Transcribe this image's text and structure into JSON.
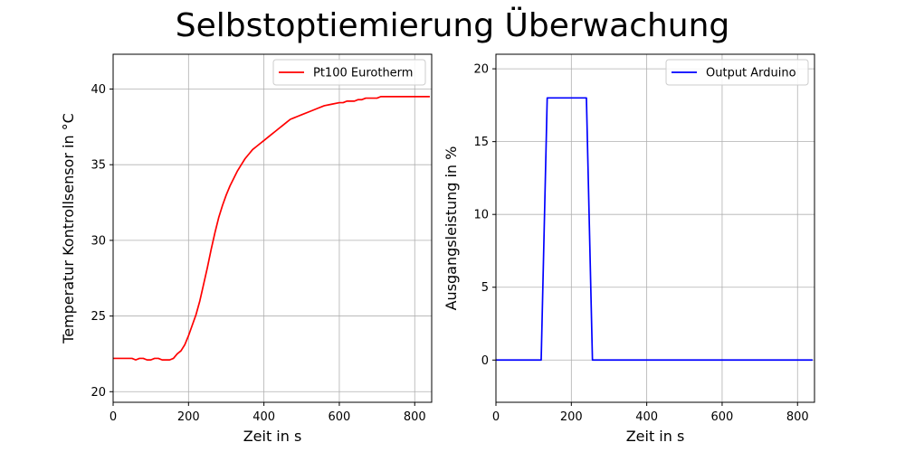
{
  "figure": {
    "title": "Selbstoptiemierung Überwachung"
  },
  "chart_data": [
    {
      "type": "line",
      "title": "",
      "xlabel": "Zeit in s",
      "ylabel": "Temperatur Kontrollsensor in °C",
      "xlim": [
        0,
        845
      ],
      "ylim": [
        19.3,
        42.3
      ],
      "xticks": [
        0,
        200,
        400,
        600,
        800
      ],
      "yticks": [
        20,
        25,
        30,
        35,
        40
      ],
      "grid": true,
      "legend_position": "upper-right",
      "series": [
        {
          "name": "Pt100 Eurotherm",
          "color": "#ff0000",
          "x": [
            0,
            10,
            20,
            30,
            40,
            50,
            60,
            70,
            80,
            90,
            100,
            110,
            120,
            130,
            140,
            150,
            160,
            170,
            180,
            190,
            200,
            210,
            220,
            230,
            240,
            250,
            260,
            270,
            280,
            290,
            300,
            310,
            320,
            330,
            340,
            350,
            360,
            370,
            380,
            390,
            400,
            410,
            420,
            430,
            440,
            450,
            460,
            470,
            480,
            490,
            500,
            520,
            540,
            560,
            580,
            600,
            610,
            620,
            640,
            650,
            660,
            670,
            680,
            690,
            700,
            710,
            720,
            740,
            760,
            780,
            800,
            820,
            840
          ],
          "y": [
            22.2,
            22.2,
            22.2,
            22.2,
            22.2,
            22.2,
            22.1,
            22.2,
            22.2,
            22.1,
            22.1,
            22.2,
            22.2,
            22.1,
            22.1,
            22.1,
            22.2,
            22.5,
            22.7,
            23.1,
            23.7,
            24.4,
            25.1,
            26.0,
            27.1,
            28.2,
            29.4,
            30.5,
            31.5,
            32.3,
            33.0,
            33.6,
            34.1,
            34.6,
            35.0,
            35.4,
            35.7,
            36.0,
            36.2,
            36.4,
            36.6,
            36.8,
            37.0,
            37.2,
            37.4,
            37.6,
            37.8,
            38.0,
            38.1,
            38.2,
            38.3,
            38.5,
            38.7,
            38.9,
            39.0,
            39.1,
            39.1,
            39.2,
            39.2,
            39.3,
            39.3,
            39.4,
            39.4,
            39.4,
            39.4,
            39.5,
            39.5,
            39.5,
            39.5,
            39.5,
            39.5,
            39.5,
            39.5
          ]
        }
      ]
    },
    {
      "type": "line",
      "title": "",
      "xlabel": "Zeit in s",
      "ylabel": "Ausgangsleistung in %",
      "xlim": [
        0,
        845
      ],
      "ylim": [
        -2.9,
        21.0
      ],
      "xticks": [
        0,
        200,
        400,
        600,
        800
      ],
      "yticks": [
        0,
        5,
        10,
        15,
        20
      ],
      "grid": true,
      "legend_position": "upper-right",
      "series": [
        {
          "name": "Output Arduino",
          "color": "#0000ff",
          "x": [
            0,
            120,
            136,
            240,
            256,
            840
          ],
          "y": [
            0,
            0,
            18,
            18,
            0,
            0
          ]
        }
      ]
    }
  ]
}
